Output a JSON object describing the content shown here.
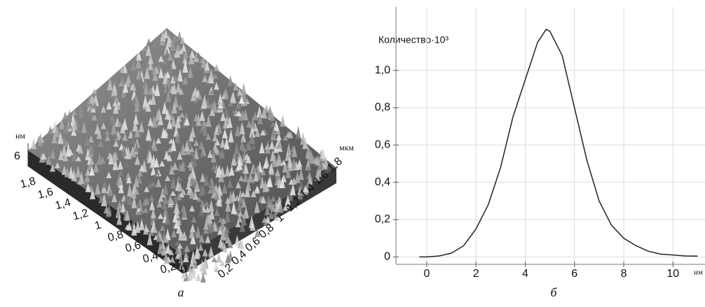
{
  "surface": {
    "z_unit": "нм",
    "z_tick": "6",
    "xy_unit": "мкм",
    "left_ticks": [
      "1,8",
      "1,6",
      "1,4",
      "1,2",
      "1",
      "0,8",
      "0,6",
      "0,4",
      "0,2"
    ],
    "corner_tick": "0",
    "right_ticks": [
      "0,2",
      "0,4",
      "0,6",
      "0,8",
      "1",
      "1,2",
      "1,4",
      "1,6",
      "1,8"
    ]
  },
  "captions": [
    "а",
    "б"
  ],
  "chart_data": {
    "type": "line",
    "y_label": "Количество·10³",
    "x_unit": "нм",
    "x": [
      -0.3,
      0,
      0.5,
      1,
      1.5,
      2,
      2.5,
      3,
      3.5,
      4,
      4.5,
      4.85,
      5,
      5.5,
      6,
      6.5,
      7,
      7.5,
      8,
      8.5,
      9,
      9.5,
      10,
      10.5,
      11
    ],
    "series": [
      {
        "color": "#222222",
        "values": [
          0,
          0,
          0.005,
          0.02,
          0.06,
          0.15,
          0.28,
          0.48,
          0.75,
          0.95,
          1.15,
          1.22,
          1.21,
          1.08,
          0.8,
          0.52,
          0.3,
          0.17,
          0.1,
          0.06,
          0.03,
          0.015,
          0.01,
          0.005,
          0.004
        ]
      }
    ],
    "xlim": [
      -1.25,
      11.3
    ],
    "ylim": [
      -0.04,
      1.34
    ],
    "xticks": [
      0,
      2,
      4,
      6,
      8,
      10
    ],
    "yticks": [
      0,
      {
        "value": 0.2,
        "label": "0,2"
      },
      {
        "value": 0.4,
        "label": "0,4"
      },
      {
        "value": 0.6,
        "label": "0,6"
      },
      {
        "value": 0.8,
        "label": "0,8"
      },
      {
        "value": 1.0,
        "label": "1,0"
      }
    ],
    "grid": true
  }
}
